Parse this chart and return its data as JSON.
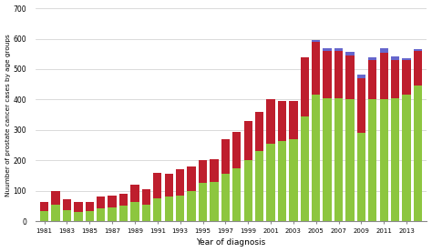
{
  "years": [
    1981,
    1982,
    1983,
    1984,
    1985,
    1986,
    1987,
    1988,
    1989,
    1990,
    1991,
    1992,
    1993,
    1994,
    1995,
    1996,
    1997,
    1998,
    1999,
    2000,
    2001,
    2002,
    2003,
    2004,
    2005,
    2006,
    2007,
    2008,
    2009,
    2010,
    2011,
    2012,
    2013,
    2014
  ],
  "green": [
    35,
    55,
    38,
    32,
    35,
    42,
    45,
    52,
    65,
    55,
    75,
    80,
    85,
    100,
    125,
    130,
    155,
    175,
    200,
    230,
    255,
    265,
    270,
    345,
    415,
    405,
    405,
    400,
    290,
    400,
    400,
    405,
    415,
    445
  ],
  "red": [
    30,
    45,
    35,
    32,
    30,
    40,
    40,
    38,
    55,
    50,
    85,
    75,
    85,
    80,
    75,
    75,
    115,
    120,
    130,
    130,
    145,
    130,
    125,
    195,
    175,
    155,
    155,
    145,
    180,
    130,
    155,
    125,
    115,
    115
  ],
  "blue": [
    0,
    0,
    0,
    0,
    0,
    0,
    0,
    0,
    0,
    0,
    0,
    0,
    0,
    0,
    0,
    0,
    0,
    0,
    0,
    0,
    0,
    0,
    0,
    0,
    5,
    10,
    10,
    12,
    12,
    10,
    15,
    12,
    5,
    5
  ],
  "colors": {
    "green": "#8dc63f",
    "red": "#be1e2d",
    "blue": "#6666cc"
  },
  "ylabel": "Nuumber of prostate cancer cases by age groups",
  "xlabel": "Year of diagnosis",
  "ylim": [
    0,
    700
  ],
  "yticks": [
    0,
    100,
    200,
    300,
    400,
    500,
    600,
    700
  ],
  "xtick_labels": [
    "1981",
    "1983",
    "1985",
    "1987",
    "1989",
    "1991",
    "1993",
    "1995",
    "1997",
    "1999",
    "2001",
    "2003",
    "2005",
    "2007",
    "2009",
    "2011",
    "2013"
  ],
  "xtick_positions": [
    1981,
    1983,
    1985,
    1987,
    1989,
    1991,
    1993,
    1995,
    1997,
    1999,
    2001,
    2003,
    2005,
    2007,
    2009,
    2011,
    2013
  ],
  "bg_color": "#ffffff",
  "grid_color": "#cccccc"
}
